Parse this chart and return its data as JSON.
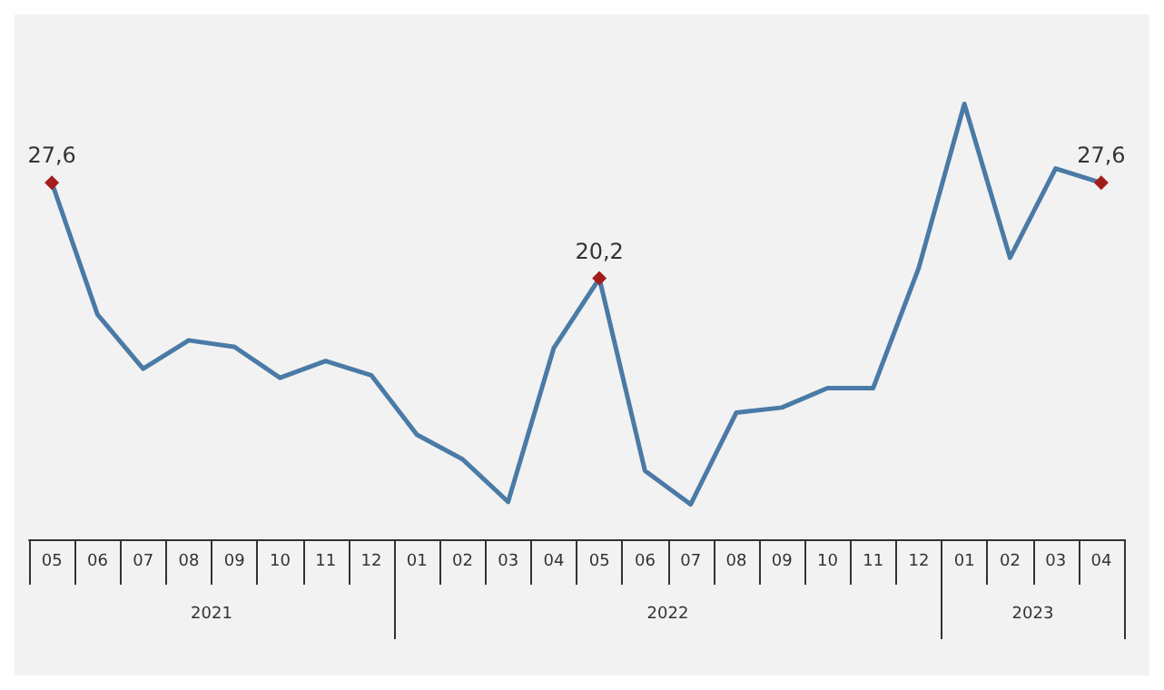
{
  "chart_data": {
    "type": "line",
    "categories": [
      "05",
      "06",
      "07",
      "08",
      "09",
      "10",
      "11",
      "12",
      "01",
      "02",
      "03",
      "04",
      "05",
      "06",
      "07",
      "08",
      "09",
      "10",
      "11",
      "12",
      "01",
      "02",
      "03",
      "04"
    ],
    "series": [
      {
        "color": "#4a7aa6",
        "values": [
          27.6,
          17.4,
          13.2,
          15.4,
          14.9,
          12.5,
          13.8,
          12.7,
          8.1,
          6.2,
          2.9,
          14.8,
          20.2,
          5.3,
          2.7,
          9.8,
          10.2,
          11.7,
          11.7,
          21.0,
          33.7,
          21.8,
          28.7,
          27.6
        ],
        "value_labels": [
          "27,6",
          null,
          null,
          null,
          null,
          null,
          null,
          null,
          null,
          null,
          null,
          null,
          "20,2",
          null,
          null,
          null,
          null,
          null,
          null,
          null,
          null,
          null,
          null,
          "27,6"
        ]
      }
    ],
    "annotations": [
      "2021",
      "2022",
      "2023"
    ],
    "grid": false
  }
}
